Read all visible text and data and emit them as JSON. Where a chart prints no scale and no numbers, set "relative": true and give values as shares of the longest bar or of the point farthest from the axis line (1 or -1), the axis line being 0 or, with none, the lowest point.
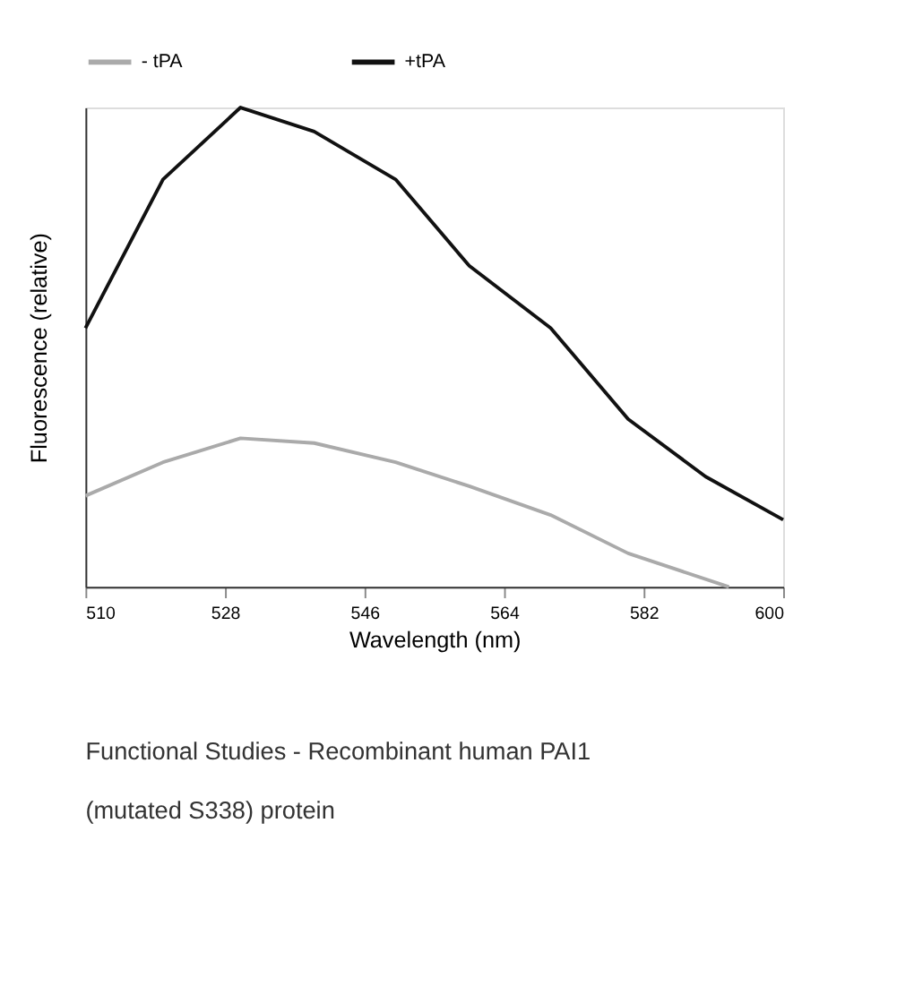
{
  "chart_data": {
    "type": "line",
    "xlabel": "Wavelength (nm)",
    "ylabel": "Fluorescence (relative)",
    "relative": true,
    "xlim": [
      510,
      600
    ],
    "xticks": [
      510,
      528,
      546,
      564,
      582,
      600
    ],
    "legend": "top",
    "grid": false,
    "marker": "none",
    "series": [
      {
        "name": "- tPA",
        "color": "#aaaaaa",
        "x": [
          510,
          520,
          530,
          539.5,
          550,
          559.5,
          570,
          580,
          593
        ],
        "values": [
          0.19,
          0.26,
          0.31,
          0.3,
          0.26,
          0.21,
          0.15,
          0.07,
          0.0
        ]
      },
      {
        "name": "+tPA",
        "color": "#111111",
        "x": [
          510,
          520,
          530,
          539.5,
          550,
          559.5,
          570,
          580,
          590,
          600
        ],
        "values": [
          0.54,
          0.85,
          1.0,
          0.95,
          0.85,
          0.67,
          0.54,
          0.35,
          0.23,
          0.14
        ]
      }
    ],
    "annotations": [
      "Functional Studies - Recombinant human PAI1 (mutated S338) protein"
    ]
  }
}
